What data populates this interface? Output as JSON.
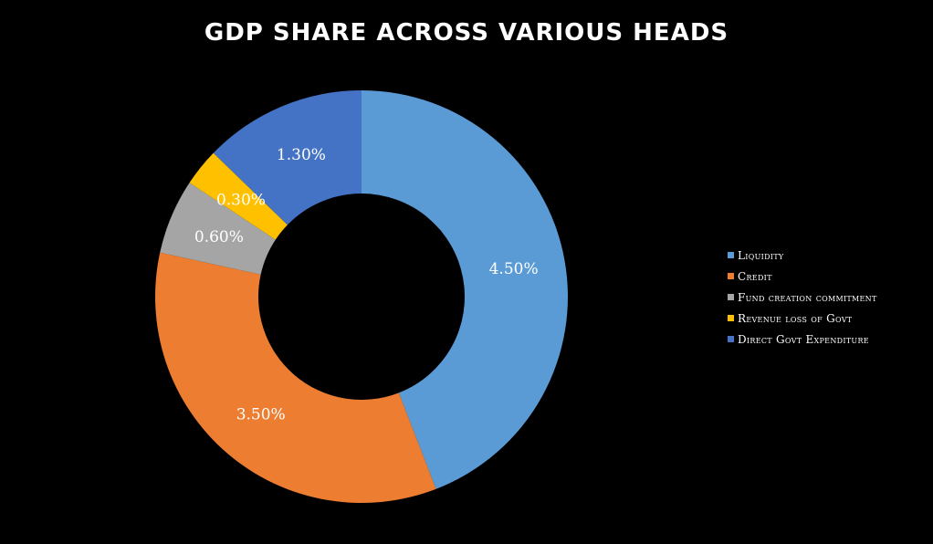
{
  "chart_data": {
    "type": "pie",
    "variant": "doughnut",
    "title": "GDP SHARE ACROSS VARIOUS HEADS",
    "categories": [
      "Liquidity",
      "Credit",
      "Fund creation commitment",
      "Revenue loss of Govt",
      "Direct Govt Expenditure"
    ],
    "values": [
      4.5,
      3.5,
      0.6,
      0.3,
      1.3
    ],
    "data_labels": [
      "4.50%",
      "3.50%",
      "0.60%",
      "0.30%",
      "1.30%"
    ],
    "colors": [
      "#5b9bd5",
      "#ed7d31",
      "#a5a5a5",
      "#ffc000",
      "#4472c4"
    ],
    "legend_position": "right",
    "background": "#000000"
  }
}
